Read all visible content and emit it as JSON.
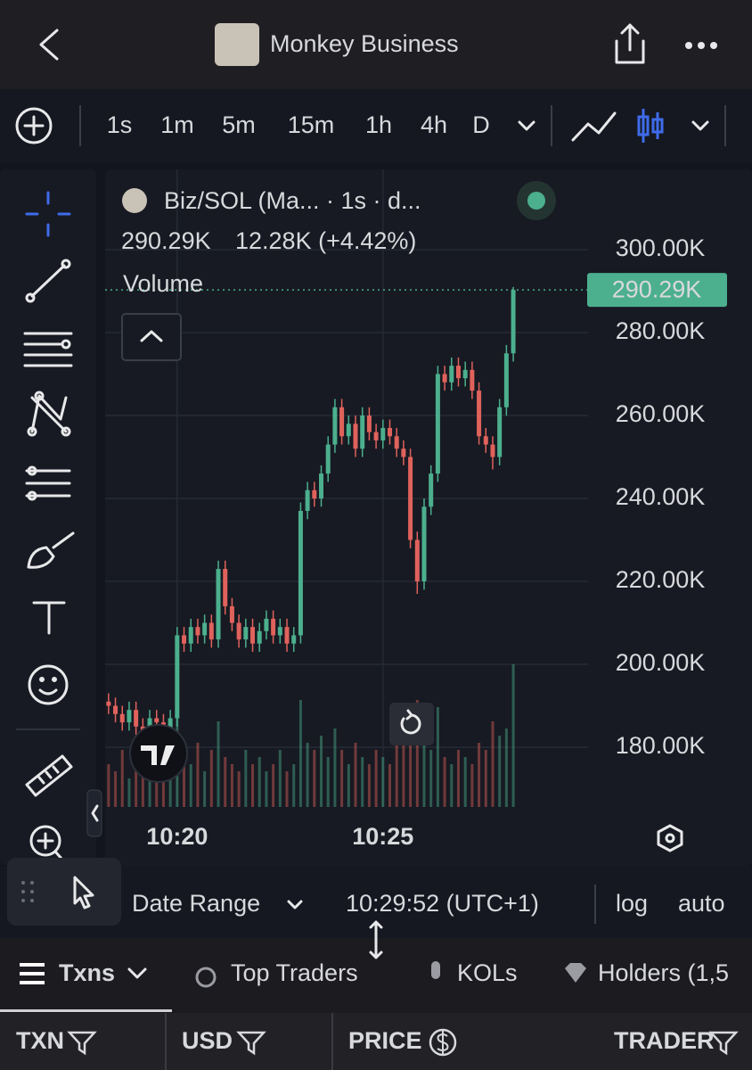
{
  "header": {
    "title": "Monkey Business"
  },
  "toolbar": {
    "intervals": [
      "1s",
      "1m",
      "5m",
      "15m",
      "1h",
      "4h",
      "D"
    ],
    "active": 0
  },
  "legend": {
    "symbol": "Biz/SOL (Ma... · 1s · d...",
    "price": "290.29K",
    "change": "12.28K (+4.42%)",
    "volume_label": "Volume"
  },
  "chart_data": {
    "type": "candlestick",
    "open": [
      191000,
      190000,
      188000,
      186000,
      189000,
      185000,
      184000,
      187000,
      186000,
      183000,
      187000,
      207000,
      205000,
      209000,
      207000,
      210000,
      206000,
      223000,
      214000,
      210000,
      206000,
      209000,
      205000,
      208000,
      211000,
      207000,
      209000,
      205000,
      207000,
      237000,
      242000,
      240000,
      246000,
      253000,
      262000,
      255000,
      258000,
      252000,
      260000,
      256000,
      254000,
      257000,
      255000,
      252000,
      250000,
      230000,
      220000,
      238000,
      246000,
      270000,
      268000,
      272000,
      269000,
      271000,
      266000,
      255000,
      253000,
      250000,
      262000,
      275000
    ],
    "high": [
      193000,
      192000,
      190000,
      191000,
      191000,
      187000,
      189000,
      189000,
      188000,
      189000,
      209000,
      209000,
      211000,
      211000,
      212000,
      212000,
      225000,
      225000,
      216000,
      212000,
      211000,
      211000,
      210000,
      213000,
      213000,
      211000,
      211000,
      209000,
      239000,
      244000,
      244000,
      248000,
      255000,
      264000,
      264000,
      260000,
      260000,
      262000,
      262000,
      258000,
      259000,
      259000,
      257000,
      254000,
      252000,
      232000,
      240000,
      248000,
      272000,
      272000,
      274000,
      274000,
      273000,
      273000,
      268000,
      257000,
      255000,
      264000,
      277000,
      291000
    ],
    "low": [
      188000,
      186000,
      184000,
      184000,
      183000,
      182000,
      182000,
      184000,
      181000,
      181000,
      185000,
      203000,
      203000,
      205000,
      205000,
      204000,
      204000,
      212000,
      208000,
      204000,
      204000,
      203000,
      203000,
      206000,
      205000,
      205000,
      203000,
      203000,
      205000,
      235000,
      238000,
      238000,
      244000,
      251000,
      253000,
      253000,
      250000,
      250000,
      254000,
      252000,
      252000,
      253000,
      250000,
      248000,
      228000,
      217000,
      218000,
      236000,
      244000,
      266000,
      266000,
      267000,
      267000,
      264000,
      253000,
      251000,
      247000,
      248000,
      260000,
      273000
    ],
    "close": [
      190000,
      188000,
      186000,
      189000,
      185000,
      184000,
      187000,
      186000,
      183000,
      187000,
      207000,
      205000,
      209000,
      207000,
      210000,
      206000,
      223000,
      214000,
      210000,
      206000,
      209000,
      205000,
      208000,
      211000,
      207000,
      209000,
      205000,
      207000,
      237000,
      242000,
      240000,
      246000,
      253000,
      262000,
      255000,
      258000,
      252000,
      260000,
      256000,
      254000,
      257000,
      255000,
      252000,
      250000,
      230000,
      220000,
      238000,
      246000,
      270000,
      268000,
      272000,
      269000,
      271000,
      266000,
      255000,
      253000,
      250000,
      262000,
      275000,
      290290
    ],
    "volume": [
      30,
      25,
      40,
      20,
      35,
      45,
      30,
      25,
      50,
      40,
      70,
      35,
      30,
      45,
      25,
      40,
      60,
      35,
      30,
      25,
      40,
      30,
      35,
      25,
      30,
      40,
      25,
      30,
      75,
      45,
      40,
      50,
      35,
      55,
      40,
      30,
      45,
      35,
      30,
      40,
      35,
      30,
      45,
      50,
      60,
      75,
      55,
      40,
      70,
      35,
      30,
      40,
      35,
      30,
      45,
      40,
      60,
      50,
      55,
      100
    ],
    "up_color": "#4caf8e",
    "down_color": "#e0625c",
    "ylim": [
      165600,
      319350
    ],
    "yticks": [
      {
        "value": 300000,
        "label": "300.00K"
      },
      {
        "value": 280000,
        "label": "280.00K"
      },
      {
        "value": 260000,
        "label": "260.00K"
      },
      {
        "value": 240000,
        "label": "240.00K"
      },
      {
        "value": 220000,
        "label": "220.00K"
      },
      {
        "value": 200000,
        "label": "200.00K"
      },
      {
        "value": 180000,
        "label": "180.00K"
      }
    ],
    "xlim": [
      -0.5,
      69.9
    ],
    "xticks": [
      {
        "value": 10,
        "label": "10:20"
      },
      {
        "value": 40,
        "label": "10:25"
      }
    ],
    "last_price_label": "290.29K",
    "grid": true
  },
  "footer": {
    "date_range": "Date Range",
    "time": "10:29:52 (UTC+1)",
    "log": "log",
    "auto": "auto"
  },
  "tabs": [
    "Txns",
    "Top Traders",
    "KOLs",
    "Holders (1,5"
  ],
  "columns": [
    "TXN",
    "USD",
    "PRICE",
    "TRADER"
  ]
}
